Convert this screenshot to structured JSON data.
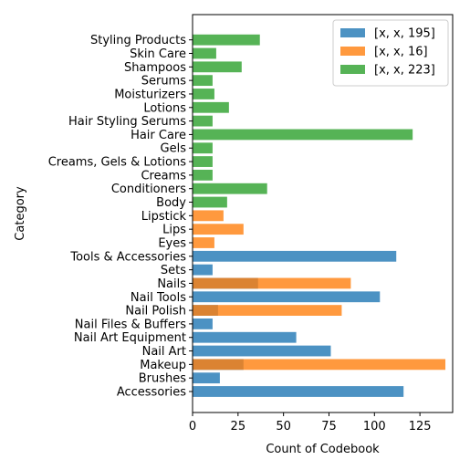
{
  "chart_data": {
    "type": "bar",
    "orientation": "horizontal",
    "categories": [
      "Accessories",
      "Brushes",
      "Makeup",
      "Nail Art",
      "Nail Art Equipment",
      "Nail Files & Buffers",
      "Nail Polish",
      "Nail Tools",
      "Nails",
      "Sets",
      "Tools & Accessories",
      "Eyes",
      "Lips",
      "Lipstick",
      "Body",
      "Conditioners",
      "Creams",
      "Creams, Gels & Lotions",
      "Gels",
      "Hair Care",
      "Hair Styling Serums",
      "Lotions",
      "Moisturizers",
      "Serums",
      "Shampoos",
      "Skin Care",
      "Styling Products"
    ],
    "series": [
      {
        "name": "[x, x, 195]",
        "color": "#1f77b4",
        "values": [
          116,
          15,
          28,
          76,
          57,
          11,
          14,
          103,
          36,
          11,
          112,
          0,
          0,
          0,
          0,
          0,
          0,
          0,
          0,
          0,
          0,
          0,
          0,
          0,
          0,
          0,
          0
        ]
      },
      {
        "name": "[x, x, 16]",
        "color": "#ff7f0e",
        "values": [
          0,
          0,
          139,
          0,
          0,
          0,
          82,
          0,
          87,
          0,
          0,
          12,
          28,
          17,
          0,
          0,
          0,
          0,
          0,
          0,
          0,
          0,
          0,
          0,
          0,
          0,
          0
        ]
      },
      {
        "name": "[x, x, 223]",
        "color": "#2ca02c",
        "values": [
          0,
          0,
          0,
          0,
          0,
          0,
          0,
          0,
          0,
          0,
          0,
          0,
          0,
          0,
          19,
          41,
          11,
          11,
          11,
          121,
          11,
          20,
          12,
          11,
          27,
          13,
          37
        ]
      }
    ],
    "bar_alpha": 0.8,
    "xlabel": "Count of Codebook",
    "ylabel": "Category",
    "xlim": [
      0,
      143
    ],
    "xticks": [
      0,
      25,
      50,
      75,
      100,
      125
    ],
    "grid": false,
    "legend_position": "top-right"
  }
}
